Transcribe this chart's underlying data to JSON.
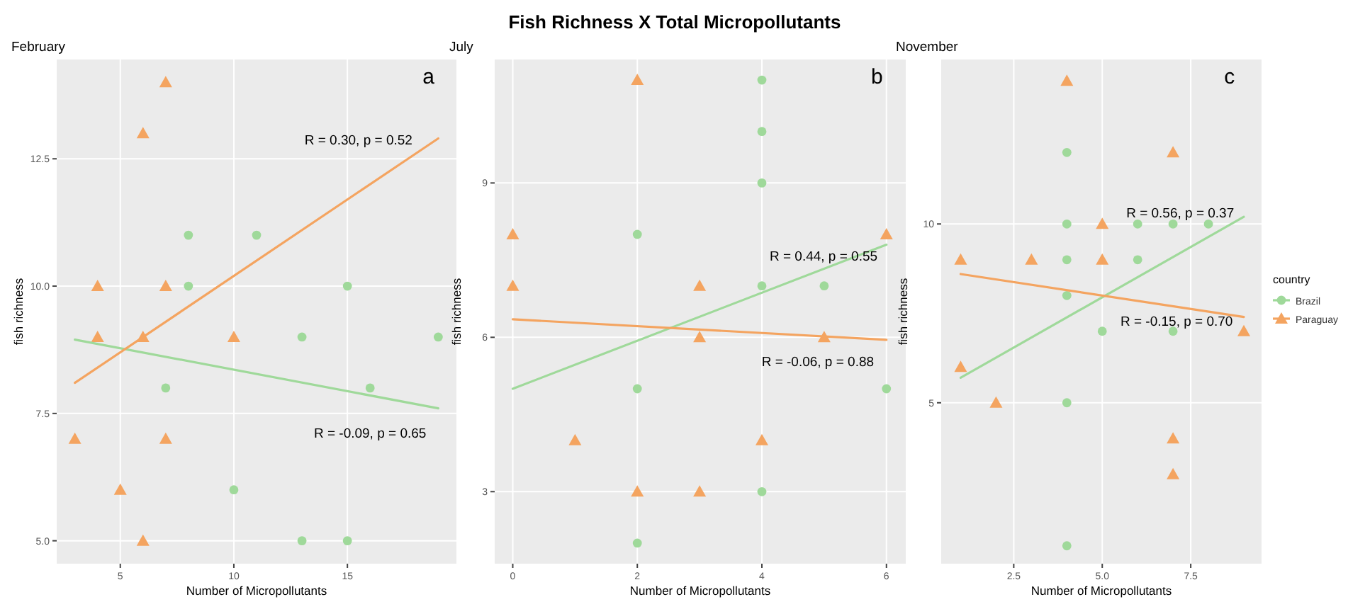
{
  "chart_data": [
    {
      "type": "scatter",
      "subtitle": "February",
      "xlabel": "Number of Micropollutants",
      "ylabel": "fish richness",
      "xlim": [
        2.2,
        19.8
      ],
      "xticks": [
        5,
        10,
        15
      ],
      "ylim": [
        4.55,
        14.45
      ],
      "yticks": [
        {
          "value": 5,
          "label": "5.0"
        },
        {
          "value": 7.5,
          "label": "7.5"
        },
        {
          "value": 10,
          "label": "10.0"
        },
        {
          "value": 12.5,
          "label": "12.5"
        }
      ],
      "grid": true,
      "series": [
        {
          "color": "#9fd99a",
          "marker": "circle",
          "x": [
            8,
            11,
            8,
            15,
            13,
            19,
            7,
            16,
            10,
            13,
            15
          ],
          "values": [
            11,
            11,
            10,
            10,
            9,
            9,
            8,
            8,
            6,
            5,
            5
          ]
        },
        {
          "color": "#f4a460",
          "marker": "triangle",
          "x": [
            7,
            6,
            4,
            7,
            4,
            6,
            10,
            3,
            7,
            5,
            6
          ],
          "values": [
            14,
            13,
            10,
            10,
            9,
            9,
            9,
            7,
            7,
            6,
            5
          ]
        },
        {
          "type": "line",
          "color": "#9fd99a",
          "x": [
            3,
            19
          ],
          "values": [
            8.95,
            7.6
          ]
        },
        {
          "type": "line",
          "color": "#f4a460",
          "x": [
            3,
            19
          ],
          "values": [
            8.1,
            12.9
          ]
        }
      ],
      "annotations": [
        "a",
        "R = 0.30, p = 0.52",
        "R = -0.09, p = 0.65"
      ]
    },
    {
      "type": "scatter",
      "title": "Fish Richness X Total Micropollutants",
      "subtitle": "July",
      "xlabel": "Number of Micropollutants",
      "ylabel": "fish richness",
      "xlim": [
        -0.29,
        6.31
      ],
      "xticks": [
        0,
        2,
        4,
        6
      ],
      "ylim": [
        1.6,
        11.4
      ],
      "yticks": [
        3,
        6,
        9
      ],
      "grid": true,
      "series": [
        {
          "color": "#9fd99a",
          "marker": "circle",
          "x": [
            4,
            4,
            4,
            2,
            4,
            5,
            2,
            6,
            4,
            2
          ],
          "values": [
            11,
            10,
            9,
            8,
            7,
            7,
            5,
            5,
            3,
            2
          ]
        },
        {
          "color": "#f4a460",
          "marker": "triangle",
          "x": [
            2,
            0,
            6,
            0,
            3,
            3,
            5,
            1,
            4,
            2,
            3
          ],
          "values": [
            11,
            8,
            8,
            7,
            7,
            6,
            6,
            4,
            4,
            3,
            3
          ]
        },
        {
          "type": "line",
          "color": "#9fd99a",
          "x": [
            0,
            6
          ],
          "values": [
            5.0,
            7.8
          ]
        },
        {
          "type": "line",
          "color": "#f4a460",
          "x": [
            0,
            6
          ],
          "values": [
            6.35,
            5.95
          ]
        }
      ],
      "annotations": [
        "b",
        "R = 0.44, p = 0.55",
        "R = -0.06, p = 0.88"
      ]
    },
    {
      "type": "scatter",
      "subtitle": "November",
      "xlabel": "Number of Micropollutants",
      "ylabel": "fish richness",
      "xlim": [
        0.45,
        9.5
      ],
      "xticks": [
        {
          "value": 2.5,
          "label": "2.5"
        },
        {
          "value": 5,
          "label": "5.0"
        },
        {
          "value": 7.5,
          "label": "7.5"
        }
      ],
      "ylim": [
        0.5,
        14.6
      ],
      "yticks": [
        5,
        10
      ],
      "grid": true,
      "legend": "right",
      "legend_title": "country",
      "series": [
        {
          "name": "Brazil",
          "color": "#9fd99a",
          "marker": "circle",
          "x": [
            4,
            4,
            6,
            7,
            8,
            4,
            6,
            4,
            5,
            7,
            4,
            4
          ],
          "values": [
            12,
            10,
            10,
            10,
            10,
            9,
            9,
            8,
            7,
            7,
            5,
            1
          ]
        },
        {
          "name": "Paraguay",
          "color": "#f4a460",
          "marker": "triangle",
          "x": [
            4,
            7,
            5,
            1,
            3,
            5,
            9,
            1,
            2,
            7,
            7
          ],
          "values": [
            14,
            12,
            10,
            9,
            9,
            9,
            7,
            6,
            5,
            4,
            3
          ]
        },
        {
          "type": "line",
          "color": "#9fd99a",
          "x": [
            1,
            9
          ],
          "values": [
            5.7,
            10.2
          ]
        },
        {
          "type": "line",
          "color": "#f4a460",
          "x": [
            1,
            9
          ],
          "values": [
            8.6,
            7.4
          ]
        }
      ],
      "annotations": [
        "c",
        "R = 0.56, p = 0.37",
        "R = -0.15, p = 0.70"
      ]
    }
  ]
}
